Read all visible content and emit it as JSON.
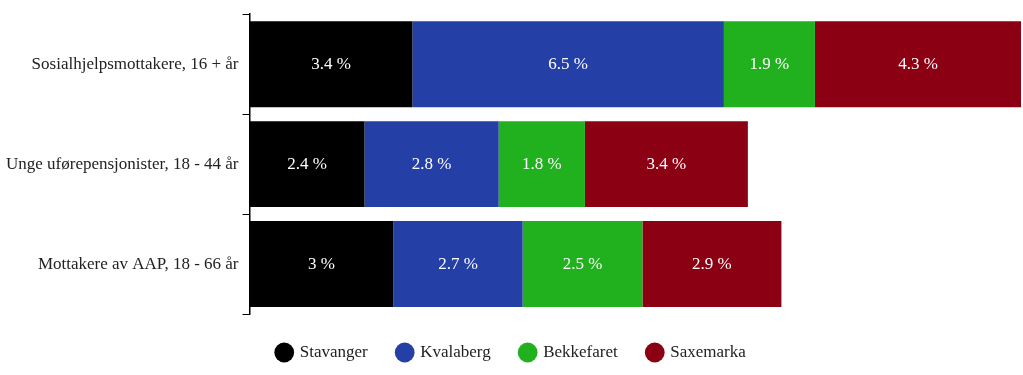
{
  "chart_data": {
    "type": "bar",
    "orientation": "horizontal",
    "stacked": true,
    "data_labels": true,
    "tick_labels": "y",
    "legend": "bottom",
    "grid": false,
    "categories": [
      "Sosialhjelpsmottakere, 16 + år",
      "Unge uførepensjonister, 18 - 44 år",
      "Mottakere av AAP, 18 - 66 år"
    ],
    "xlim": [
      0,
      16.1
    ],
    "series": [
      {
        "name": "Stavanger",
        "color": "#000000",
        "values": [
          3.4,
          2.4,
          3
        ],
        "value_labels": [
          "3.4 %",
          "2.4 %",
          "3 %"
        ]
      },
      {
        "name": "Kvalaberg",
        "color": "#2440a6",
        "values": [
          6.5,
          2.8,
          2.7
        ],
        "value_labels": [
          "6.5 %",
          "2.8 %",
          "2.7 %"
        ]
      },
      {
        "name": "Bekkefaret",
        "color": "#22b11e",
        "values": [
          1.9,
          1.8,
          2.5
        ],
        "value_labels": [
          "1.9 %",
          "1.8 %",
          "2.5 %"
        ]
      },
      {
        "name": "Saxemarka",
        "color": "#8c0013",
        "values": [
          4.3,
          3.4,
          2.9
        ],
        "value_labels": [
          "4.3 %",
          "3.4 %",
          "2.9 %"
        ]
      }
    ]
  }
}
